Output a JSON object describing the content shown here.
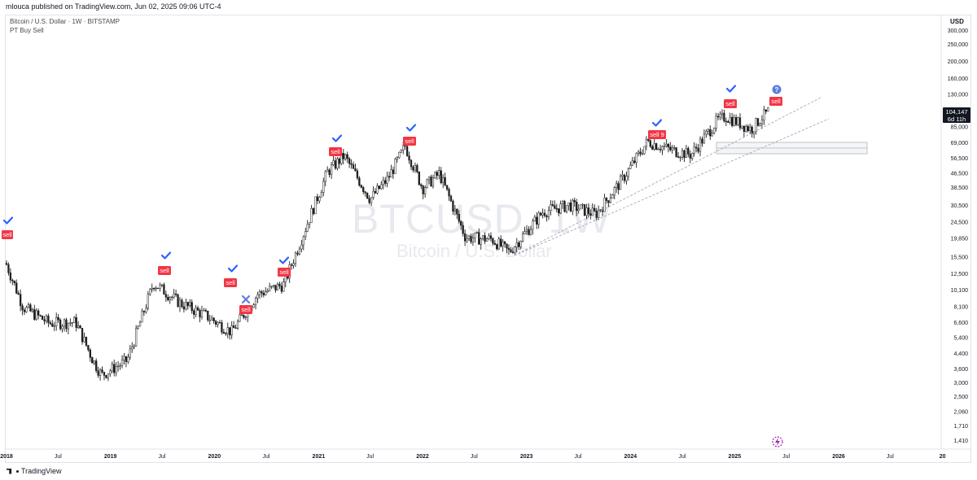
{
  "header": {
    "publisher_text": "mlouca published on TradingView.com, Jun 02, 2025 09:06 UTC-4"
  },
  "legend": {
    "symbol_line": "Bitcoin / U.S. Dollar · 1W · BITSTAMP",
    "indicator_line": "PT Buy Sell"
  },
  "watermark": {
    "ticker": "BTCUSD, 1W",
    "name": "Bitcoin / U.S. Dollar"
  },
  "price_axis": {
    "currency": "USD",
    "ticks": [
      "300,000",
      "250,000",
      "200,000",
      "160,000",
      "130,000",
      "85,000",
      "69,000",
      "56,500",
      "46,500",
      "38,500",
      "30,500",
      "24,500",
      "19,850",
      "15,500",
      "12,500",
      "10,100",
      "8,100",
      "6,600",
      "5,400",
      "4,400",
      "3,600",
      "3,000",
      "2,500",
      "2,060",
      "1,710",
      "1,410"
    ],
    "last_price": "104,147",
    "countdown": "6d 11h"
  },
  "time_axis": {
    "labels": [
      "2018",
      "Jul",
      "2019",
      "Jul",
      "2020",
      "Jul",
      "2021",
      "Jul",
      "2022",
      "Jul",
      "2023",
      "Jul",
      "2024",
      "Jul",
      "2025",
      "Jul",
      "2026",
      "Jul",
      "20"
    ]
  },
  "signals": {
    "sell_label": "sell",
    "sell9_label": "sell 9"
  },
  "footer": {
    "brand": "TradingView"
  },
  "colors": {
    "candle": "#1e1e1e",
    "sell_badge": "#f23645",
    "check": "#2962ff",
    "cross": "#5b7fdd",
    "question": "#5b7fdd",
    "trendline": "#9aa0aa",
    "zone_border": "#b2b5be",
    "watermark": "#e7e9ef",
    "lightning": "#9c27b0"
  },
  "chart_data": {
    "type": "candlestick",
    "interval": "1W",
    "y_scale": "log",
    "x": [
      "2018-01",
      "2018-03",
      "2018-06",
      "2018-09",
      "2018-11",
      "2018-12",
      "2019-03",
      "2019-06",
      "2019-09",
      "2019-12",
      "2020-03",
      "2020-06",
      "2020-09",
      "2020-12",
      "2021-02",
      "2021-04",
      "2021-07",
      "2021-09",
      "2021-11",
      "2022-01",
      "2022-03",
      "2022-06",
      "2022-09",
      "2022-11",
      "2023-03",
      "2023-06",
      "2023-09",
      "2023-12",
      "2024-03",
      "2024-06",
      "2024-08",
      "2024-11",
      "2024-12",
      "2025-03",
      "2025-04",
      "2025-05"
    ],
    "close": [
      14000,
      8000,
      6500,
      6600,
      4000,
      3300,
      4000,
      11000,
      8500,
      7200,
      5800,
      9500,
      10800,
      26000,
      47000,
      58000,
      33000,
      43000,
      66000,
      38000,
      46000,
      20000,
      19500,
      16500,
      28000,
      30500,
      27000,
      42000,
      70000,
      62000,
      59000,
      92000,
      97000,
      82000,
      94000,
      104147
    ],
    "ylim": [
      1410,
      300000
    ],
    "signals": [
      {
        "type": "sell",
        "x": "2017-12",
        "check": true
      },
      {
        "type": "sell",
        "x": "2019-06",
        "check": true
      },
      {
        "type": "sell",
        "x": "2020-02",
        "check": true
      },
      {
        "type": "sell",
        "x": "2020-03",
        "check": false
      },
      {
        "type": "sell",
        "x": "2020-08",
        "check": true
      },
      {
        "type": "sell",
        "x": "2021-03",
        "check": true
      },
      {
        "type": "sell",
        "x": "2021-11",
        "check": true
      },
      {
        "type": "sell 9",
        "x": "2024-03",
        "check": true
      },
      {
        "type": "sell",
        "x": "2024-12",
        "check": true
      },
      {
        "type": "sell",
        "x": "2025-05",
        "check": false,
        "question": true
      }
    ]
  }
}
